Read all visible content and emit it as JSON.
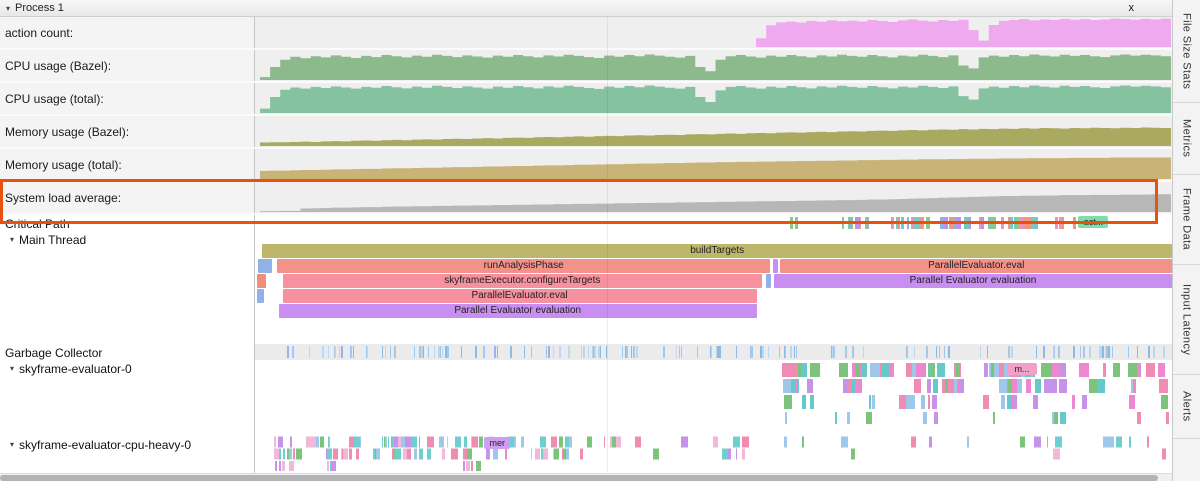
{
  "icons": {
    "collapse": "▾"
  },
  "header": {
    "title": "Process 1",
    "close_label": "x"
  },
  "highlight_box": {
    "color": "#e8520f"
  },
  "rail": {
    "tabs": [
      {
        "label": "File Size Stats"
      },
      {
        "label": "Metrics"
      },
      {
        "label": "Frame Data"
      },
      {
        "label": "Input Latency"
      },
      {
        "label": "Alerts"
      }
    ]
  },
  "counters": [
    {
      "label": "action count:",
      "color": "#efa9ef",
      "values": [
        0,
        0,
        0,
        0,
        0,
        0,
        0,
        0,
        0,
        0,
        0,
        0,
        0,
        0,
        0,
        0,
        0,
        0,
        0,
        0,
        0,
        0,
        0,
        0,
        0,
        0,
        0,
        0,
        0,
        0,
        0,
        0,
        0,
        0,
        0,
        0,
        0,
        0,
        0,
        0,
        0,
        0,
        0,
        0,
        0,
        0,
        0,
        0,
        0,
        30,
        75,
        85,
        88,
        84,
        90,
        87,
        92,
        89,
        91,
        88,
        93,
        90,
        86,
        92,
        95,
        91,
        88,
        93,
        90,
        94,
        58,
        22,
        76,
        90,
        93,
        96,
        92,
        95,
        93,
        97,
        94,
        96,
        93,
        95,
        98,
        96,
        94,
        97,
        95,
        98
      ]
    },
    {
      "label": "CPU usage (Bazel):",
      "color": "#8cba8c",
      "values": [
        10,
        45,
        70,
        80,
        75,
        82,
        78,
        85,
        80,
        76,
        83,
        79,
        86,
        82,
        78,
        84,
        80,
        87,
        83,
        79,
        85,
        81,
        77,
        84,
        80,
        86,
        82,
        78,
        85,
        81,
        87,
        83,
        79,
        76,
        84,
        80,
        86,
        82,
        88,
        84,
        80,
        77,
        83,
        45,
        30,
        70,
        82,
        86,
        81,
        77,
        84,
        80,
        86,
        82,
        78,
        85,
        81,
        87,
        83,
        80,
        86,
        82,
        78,
        84,
        81,
        87,
        83,
        79,
        85,
        50,
        40,
        78,
        84,
        80,
        86,
        82,
        88,
        84,
        81,
        87,
        83,
        86,
        82,
        79,
        85,
        88,
        84,
        87,
        85,
        82
      ]
    },
    {
      "label": "CPU usage (total):",
      "color": "#86c2a0",
      "values": [
        15,
        55,
        80,
        88,
        84,
        90,
        86,
        92,
        88,
        84,
        90,
        87,
        93,
        89,
        85,
        91,
        87,
        94,
        90,
        86,
        92,
        88,
        84,
        91,
        87,
        93,
        89,
        85,
        92,
        88,
        94,
        90,
        86,
        83,
        91,
        87,
        93,
        89,
        95,
        91,
        87,
        84,
        90,
        55,
        38,
        78,
        90,
        93,
        88,
        84,
        91,
        87,
        93,
        89,
        85,
        92,
        88,
        94,
        90,
        87,
        93,
        89,
        85,
        91,
        88,
        94,
        90,
        86,
        92,
        58,
        46,
        85,
        91,
        87,
        93,
        89,
        95,
        91,
        88,
        94,
        90,
        93,
        89,
        86,
        92,
        95,
        91,
        94,
        92,
        89
      ]
    },
    {
      "label": "Memory usage (Bazel):",
      "color": "#a9a95f",
      "values": [
        12,
        13,
        13,
        14,
        15,
        14,
        16,
        17,
        16,
        18,
        19,
        18,
        20,
        21,
        20,
        22,
        23,
        22,
        24,
        25,
        24,
        26,
        27,
        26,
        28,
        29,
        28,
        30,
        31,
        30,
        32,
        33,
        32,
        34,
        35,
        34,
        36,
        37,
        36,
        38,
        39,
        38,
        40,
        41,
        40,
        42,
        43,
        42,
        44,
        45,
        44,
        46,
        47,
        46,
        48,
        49,
        48,
        50,
        51,
        50,
        52,
        53,
        52,
        54,
        55,
        54,
        56,
        57,
        56,
        58,
        57,
        59,
        58,
        60,
        59,
        61,
        60,
        62,
        61,
        60,
        62,
        61,
        63,
        62,
        61,
        63,
        62,
        64,
        63,
        62
      ]
    },
    {
      "label": "Memory usage (total):",
      "color": "#c9b377",
      "values": [
        28,
        29,
        29,
        30,
        31,
        31,
        32,
        33,
        33,
        34,
        35,
        35,
        36,
        37,
        37,
        38,
        39,
        39,
        40,
        41,
        41,
        42,
        43,
        43,
        44,
        45,
        45,
        46,
        47,
        47,
        48,
        49,
        49,
        50,
        51,
        51,
        52,
        53,
        53,
        54,
        55,
        55,
        56,
        57,
        57,
        58,
        58,
        59,
        59,
        60,
        60,
        61,
        61,
        62,
        62,
        63,
        63,
        64,
        64,
        65,
        65,
        66,
        66,
        67,
        67,
        68,
        68,
        68,
        69,
        69,
        70,
        70,
        70,
        71,
        71,
        71,
        72,
        72,
        72,
        72,
        73,
        73,
        73,
        73,
        74,
        74,
        74,
        74,
        74,
        74
      ]
    },
    {
      "label": "System load average:",
      "color": "#b7b7b7",
      "highlighted": true,
      "values": [
        3,
        3,
        4,
        4,
        12,
        13,
        14,
        15,
        15,
        16,
        17,
        17,
        18,
        19,
        19,
        20,
        20,
        21,
        21,
        22,
        22,
        23,
        23,
        24,
        24,
        25,
        25,
        26,
        26,
        27,
        27,
        28,
        28,
        29,
        29,
        30,
        30,
        31,
        31,
        32,
        32,
        33,
        33,
        34,
        34,
        35,
        35,
        36,
        36,
        37,
        37,
        38,
        38,
        39,
        39,
        40,
        40,
        41,
        41,
        42,
        43,
        43,
        44,
        45,
        46,
        47,
        48,
        49,
        50,
        51,
        52,
        53,
        54,
        55,
        55,
        56,
        56,
        57,
        57,
        58,
        58,
        58,
        59,
        59,
        59,
        60,
        60,
        60,
        61,
        61
      ]
    }
  ],
  "critical_path": {
    "label": "Critical Path",
    "badge": {
      "t": "act...",
      "c": "#7fdcab",
      "l": 89.8,
      "wpx": 30
    },
    "ticks": {
      "seed": 11,
      "h": 12,
      "minw": 2,
      "maxw": 5,
      "palette": [
        "#8fb3e0",
        "#74c9c4",
        "#ef93b9",
        "#b795e8",
        "#8cc98c",
        "#f0977f"
      ],
      "regions": [
        {
          "l": 57.8,
          "r": 59.5,
          "n": 2
        },
        {
          "l": 62.5,
          "r": 67.5,
          "n": 9
        },
        {
          "l": 69.0,
          "r": 90.6,
          "n": 50
        }
      ]
    }
  },
  "main_thread": {
    "label": "Main Thread",
    "rows": [
      [
        {
          "l": 0.8,
          "w": 99.2,
          "c": "#bdb76b",
          "t": "buildTargets"
        }
      ],
      [
        {
          "l": 0.3,
          "w": 1.5,
          "c": "#8fb3e8"
        },
        {
          "l": 2.4,
          "w": 53.8,
          "c": "#f29289",
          "t": "runAnalysisPhase"
        },
        {
          "l": 56.5,
          "w": 0.5,
          "c": "#c88ef0"
        },
        {
          "l": 57.3,
          "w": 42.7,
          "c": "#f29289",
          "t": "ParallelEvaluator.eval"
        }
      ],
      [
        {
          "l": 0.2,
          "w": 1.0,
          "c": "#ef8f7a"
        },
        {
          "l": 3.0,
          "w": 52.3,
          "c": "#f7909f",
          "t": "skyframeExecutor.configureTargets"
        },
        {
          "l": 55.7,
          "w": 0.6,
          "c": "#8fb3e8"
        },
        {
          "l": 56.6,
          "w": 43.4,
          "c": "#c88ef0",
          "t": "Parallel Evaluator evaluation"
        }
      ],
      [
        {
          "l": 0.2,
          "w": 0.8,
          "c": "#8fb3e8"
        },
        {
          "l": 3.0,
          "w": 51.7,
          "c": "#f7909f",
          "t": "ParallelEvaluator.eval"
        }
      ],
      [
        {
          "l": 2.6,
          "w": 52.1,
          "c": "#c88ef0",
          "t": "Parallel Evaluator evaluation"
        }
      ]
    ]
  },
  "garbage_collector": {
    "label": "Garbage Collector",
    "ticks": {
      "seed": 23,
      "h": 12,
      "minw": 1,
      "maxw": 2,
      "palette": [
        "#a5c9ec",
        "#8fb9e2",
        "#bcd7f2"
      ],
      "regions": [
        {
          "l": 3.5,
          "r": 99.5,
          "n": 130
        }
      ]
    }
  },
  "evaluator0": {
    "label": "skyframe-evaluator-0",
    "badge": {
      "t": "m...",
      "c": "#f2a0c8",
      "l": 82.0,
      "wpx": 30
    },
    "rows": [
      {
        "seed": 31,
        "h": 14,
        "minw": 2,
        "maxw": 12,
        "palette": [
          "#f08cb4",
          "#7cc47c",
          "#66c9c9",
          "#c693e8",
          "#ef86d0",
          "#9ec7ea"
        ],
        "regions": [
          {
            "l": 57.5,
            "r": 60.8,
            "n": 6
          },
          {
            "l": 63.2,
            "r": 76.8,
            "n": 26
          },
          {
            "l": 79.0,
            "r": 88.0,
            "n": 18
          },
          {
            "l": 88.5,
            "r": 99.5,
            "n": 9
          }
        ]
      },
      {
        "seed": 37,
        "h": 14,
        "minw": 2,
        "maxw": 10,
        "palette": [
          "#f08cb4",
          "#7cc47c",
          "#66c9c9",
          "#c693e8",
          "#ef86d0",
          "#9ec7ea"
        ],
        "regions": [
          {
            "l": 57.5,
            "r": 60.8,
            "n": 4
          },
          {
            "l": 63.2,
            "r": 76.8,
            "n": 16
          },
          {
            "l": 79.0,
            "r": 88.0,
            "n": 12
          },
          {
            "l": 88.5,
            "r": 99.5,
            "n": 7
          }
        ]
      },
      {
        "seed": 41,
        "h": 14,
        "minw": 2,
        "maxw": 8,
        "palette": [
          "#f08cb4",
          "#7cc47c",
          "#66c9c9",
          "#c693e8",
          "#ef86d0",
          "#9ec7ea"
        ],
        "regions": [
          {
            "l": 57.5,
            "r": 60.8,
            "n": 3
          },
          {
            "l": 63.2,
            "r": 76.8,
            "n": 9
          },
          {
            "l": 79.0,
            "r": 88.0,
            "n": 7
          },
          {
            "l": 88.5,
            "r": 99.5,
            "n": 4
          }
        ]
      },
      {
        "seed": 43,
        "h": 12,
        "minw": 2,
        "maxw": 6,
        "palette": [
          "#f08cb4",
          "#7cc47c",
          "#66c9c9",
          "#c693e8",
          "#ef86d0",
          "#9ec7ea"
        ],
        "regions": [
          {
            "l": 57.5,
            "r": 60.8,
            "n": 1
          },
          {
            "l": 63.2,
            "r": 76.8,
            "n": 5
          },
          {
            "l": 79.0,
            "r": 88.0,
            "n": 4
          },
          {
            "l": 88.5,
            "r": 99.5,
            "n": 2
          }
        ]
      }
    ]
  },
  "evaluator_cpu": {
    "label": "skyframe-evaluator-cpu-heavy-0",
    "badge": {
      "t": "mer",
      "c": "#d09df2",
      "l": 25.0,
      "wpx": 26
    },
    "rows": [
      {
        "seed": 53,
        "h": 11,
        "minw": 1,
        "maxw": 7,
        "palette": [
          "#6fcfcf",
          "#f08cb4",
          "#c693e8",
          "#9ec7ea",
          "#7cc47c",
          "#f2b8d9"
        ],
        "regions": [
          {
            "l": 1.8,
            "r": 20.5,
            "n": 34
          },
          {
            "l": 20.5,
            "r": 39.5,
            "n": 26
          },
          {
            "l": 40.0,
            "r": 99.0,
            "n": 20
          }
        ]
      },
      {
        "seed": 59,
        "h": 11,
        "minw": 1,
        "maxw": 7,
        "palette": [
          "#6fcfcf",
          "#f08cb4",
          "#c693e8",
          "#9ec7ea",
          "#7cc47c",
          "#f2b8d9"
        ],
        "regions": [
          {
            "l": 1.8,
            "r": 20.5,
            "n": 28
          },
          {
            "l": 20.5,
            "r": 39.5,
            "n": 20
          },
          {
            "l": 40.0,
            "r": 99.0,
            "n": 8
          }
        ]
      },
      {
        "seed": 61,
        "h": 10,
        "minw": 1,
        "maxw": 6,
        "palette": [
          "#6fcfcf",
          "#f08cb4",
          "#c693e8",
          "#9ec7ea",
          "#7cc47c",
          "#f2b8d9"
        ],
        "regions": [
          {
            "l": 1.8,
            "r": 5.0,
            "n": 4
          },
          {
            "l": 6.0,
            "r": 10.0,
            "n": 3
          },
          {
            "l": 20.0,
            "r": 34.0,
            "n": 4
          }
        ]
      }
    ]
  }
}
